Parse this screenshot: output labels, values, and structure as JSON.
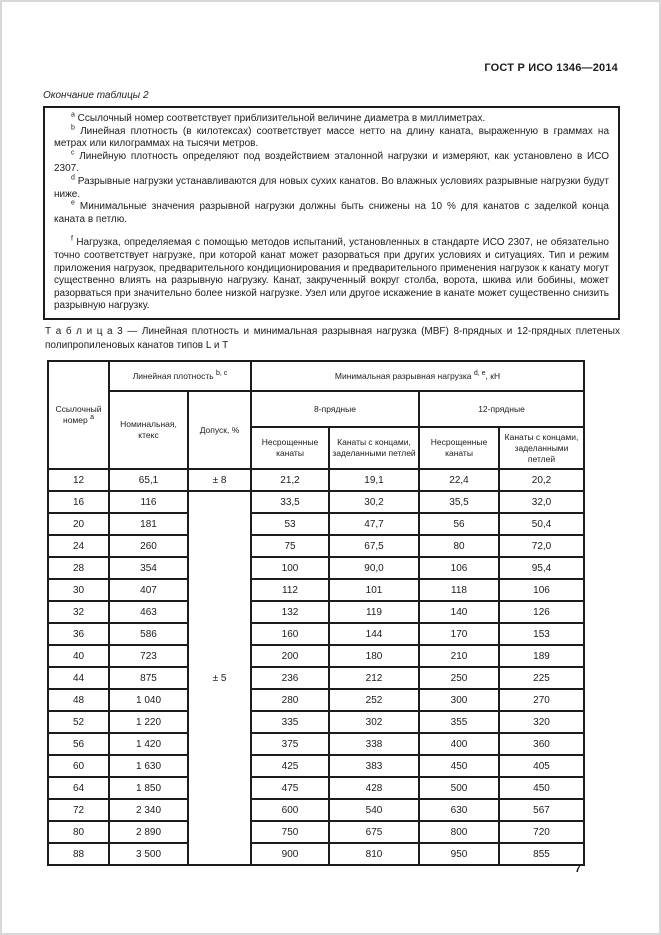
{
  "page": {
    "doc_code": "ГОСТ Р ИСО 1346—2014",
    "continuation_note": "Окончание таблицы 2",
    "page_number": "7",
    "colors": {
      "ink": "#1c1c1c",
      "paper": "#ffffff"
    }
  },
  "footnote_box": {
    "notes": [
      {
        "marker": "a",
        "text": " Ссылочный номер соответствует приблизительной величине диаметра в миллиметрах."
      },
      {
        "marker": "b",
        "text": " Линейная плотность (в килотексах) соответствует массе нетто на длину каната, выраженную в граммах на метрах или килограммах на тысячи метров."
      },
      {
        "marker": "c",
        "text": " Линейную плотность определяют под воздействием эталонной нагрузки и измеряют, как установлено в ИСО 2307."
      },
      {
        "marker": "d",
        "text": " Разрывные нагрузки устанавливаются для новых сухих канатов. Во влажных условиях разрывные нагрузки будут ниже."
      },
      {
        "marker": "e",
        "text": " Минимальные значения разрывной нагрузки должны быть снижены на 10 % для канатов с заделкой конца каната в петлю."
      }
    ],
    "note_f": {
      "marker": "f",
      "text": " Нагрузка, определяемая с помощью методов испытаний, установленных в стандарте ИСО 2307, не обязательно точно соответствует нагрузке, при которой канат может разорваться при других условиях и ситуациях. Тип и режим приложения нагрузок, предварительного кондиционирования и предварительного применения нагрузок к канату могут существенно влиять на разрывную нагрузку. Канат, закрученный вокруг столба, ворота, шкива или бобины, может разорваться при значительно более низкой нагрузке. Узел или другое искажение в канате может существенно снизить разрывную нагрузку."
    }
  },
  "table": {
    "caption": "Т а б л и ц а  3 — Линейная плотность и минимальная разрывная нагрузка (MBF) 8-прядных и 12-прядных плетеных полипропиленовых канатов типов L и Т",
    "header": {
      "ref": {
        "text": "Ссылочный номер ",
        "sup": "a"
      },
      "linear_density": {
        "text": "Линейная плотность ",
        "sup": "b, c"
      },
      "mbf": {
        "pre": "Минимальная разрывная нагрузка ",
        "sup": "d, e",
        "post": ", кН"
      },
      "nominal": "Номинальная, ктекс",
      "tolerance": "Допуск, %",
      "strand8": "8-прядные",
      "strand12": "12-прядные",
      "unspliced": "Несрощенные канаты",
      "eye_spliced": "Канаты с концами, заделанными петлей"
    },
    "tolerance_first": "± 8",
    "tolerance_merged": "± 5",
    "rows": [
      {
        "ref": "12",
        "ktex": "65,1",
        "v": [
          "21,2",
          "19,1",
          "22,4",
          "20,2"
        ]
      },
      {
        "ref": "16",
        "ktex": "116",
        "v": [
          "33,5",
          "30,2",
          "35,5",
          "32,0"
        ]
      },
      {
        "ref": "20",
        "ktex": "181",
        "v": [
          "53",
          "47,7",
          "56",
          "50,4"
        ]
      },
      {
        "ref": "24",
        "ktex": "260",
        "v": [
          "75",
          "67,5",
          "80",
          "72,0"
        ]
      },
      {
        "ref": "28",
        "ktex": "354",
        "v": [
          "100",
          "90,0",
          "106",
          "95,4"
        ]
      },
      {
        "ref": "30",
        "ktex": "407",
        "v": [
          "112",
          "101",
          "118",
          "106"
        ]
      },
      {
        "ref": "32",
        "ktex": "463",
        "v": [
          "132",
          "119",
          "140",
          "126"
        ]
      },
      {
        "ref": "36",
        "ktex": "586",
        "v": [
          "160",
          "144",
          "170",
          "153"
        ]
      },
      {
        "ref": "40",
        "ktex": "723",
        "v": [
          "200",
          "180",
          "210",
          "189"
        ]
      },
      {
        "ref": "44",
        "ktex": "875",
        "v": [
          "236",
          "212",
          "250",
          "225"
        ]
      },
      {
        "ref": "48",
        "ktex": "1 040",
        "v": [
          "280",
          "252",
          "300",
          "270"
        ]
      },
      {
        "ref": "52",
        "ktex": "1 220",
        "v": [
          "335",
          "302",
          "355",
          "320"
        ]
      },
      {
        "ref": "56",
        "ktex": "1 420",
        "v": [
          "375",
          "338",
          "400",
          "360"
        ]
      },
      {
        "ref": "60",
        "ktex": "1 630",
        "v": [
          "425",
          "383",
          "450",
          "405"
        ]
      },
      {
        "ref": "64",
        "ktex": "1 850",
        "v": [
          "475",
          "428",
          "500",
          "450"
        ]
      },
      {
        "ref": "72",
        "ktex": "2 340",
        "v": [
          "600",
          "540",
          "630",
          "567"
        ]
      },
      {
        "ref": "80",
        "ktex": "2 890",
        "v": [
          "750",
          "675",
          "800",
          "720"
        ]
      },
      {
        "ref": "88",
        "ktex": "3 500",
        "v": [
          "900",
          "810",
          "950",
          "855"
        ]
      }
    ]
  }
}
